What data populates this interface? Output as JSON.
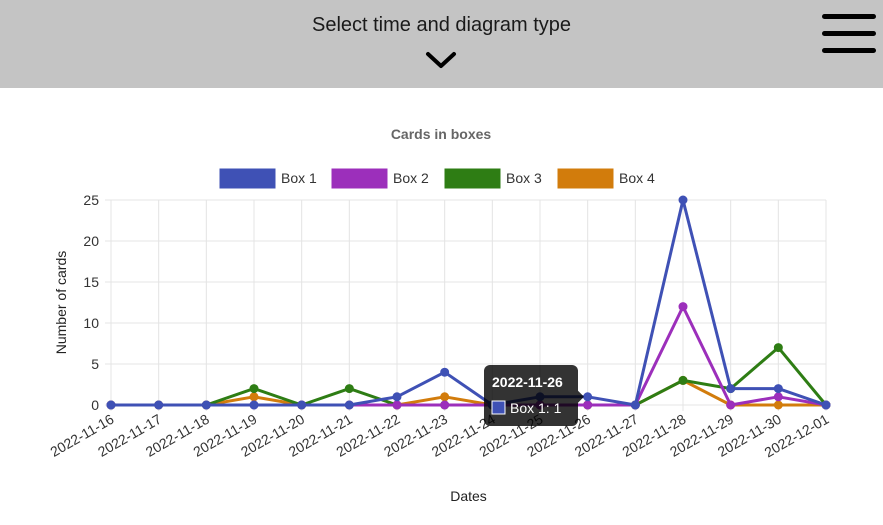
{
  "header": {
    "title": "Select time and diagram type",
    "toggle_icon": "chevron-down-icon",
    "menu_icon": "hamburger-menu-icon"
  },
  "chart_data": {
    "type": "line",
    "title": "Cards in boxes",
    "xlabel": "Dates",
    "ylabel": "Number of cards",
    "ylim": [
      0,
      25
    ],
    "yticks": [
      0,
      5,
      10,
      15,
      20,
      25
    ],
    "legend_position": "top",
    "grid": true,
    "categories": [
      "2022-11-16",
      "2022-11-17",
      "2022-11-18",
      "2022-11-19",
      "2022-11-20",
      "2022-11-21",
      "2022-11-22",
      "2022-11-23",
      "2022-11-24",
      "2022-11-25",
      "2022-11-26",
      "2022-11-27",
      "2022-11-28",
      "2022-11-29",
      "2022-11-30",
      "2022-12-01"
    ],
    "series": [
      {
        "name": "Box 1",
        "color": "#3f51b5",
        "values": [
          0,
          0,
          0,
          0,
          0,
          0,
          1,
          4,
          0,
          1,
          1,
          0,
          25,
          2,
          2,
          0
        ]
      },
      {
        "name": "Box 2",
        "color": "#9c2fbb",
        "values": [
          0,
          0,
          0,
          0,
          0,
          0,
          0,
          0,
          0,
          0,
          0,
          0,
          12,
          0,
          1,
          0
        ]
      },
      {
        "name": "Box 3",
        "color": "#2e7d14",
        "values": [
          0,
          0,
          0,
          2,
          0,
          2,
          0,
          0,
          0,
          0,
          0,
          0,
          3,
          2,
          7,
          0
        ]
      },
      {
        "name": "Box 4",
        "color": "#d27c0c",
        "values": [
          0,
          0,
          0,
          1,
          0,
          0,
          0,
          1,
          0,
          0,
          0,
          0,
          3,
          0,
          0,
          0
        ]
      }
    ],
    "tooltip": {
      "title": "2022-11-26",
      "label": "Box 1: 1",
      "series_index": 0,
      "category_index": 10
    }
  }
}
